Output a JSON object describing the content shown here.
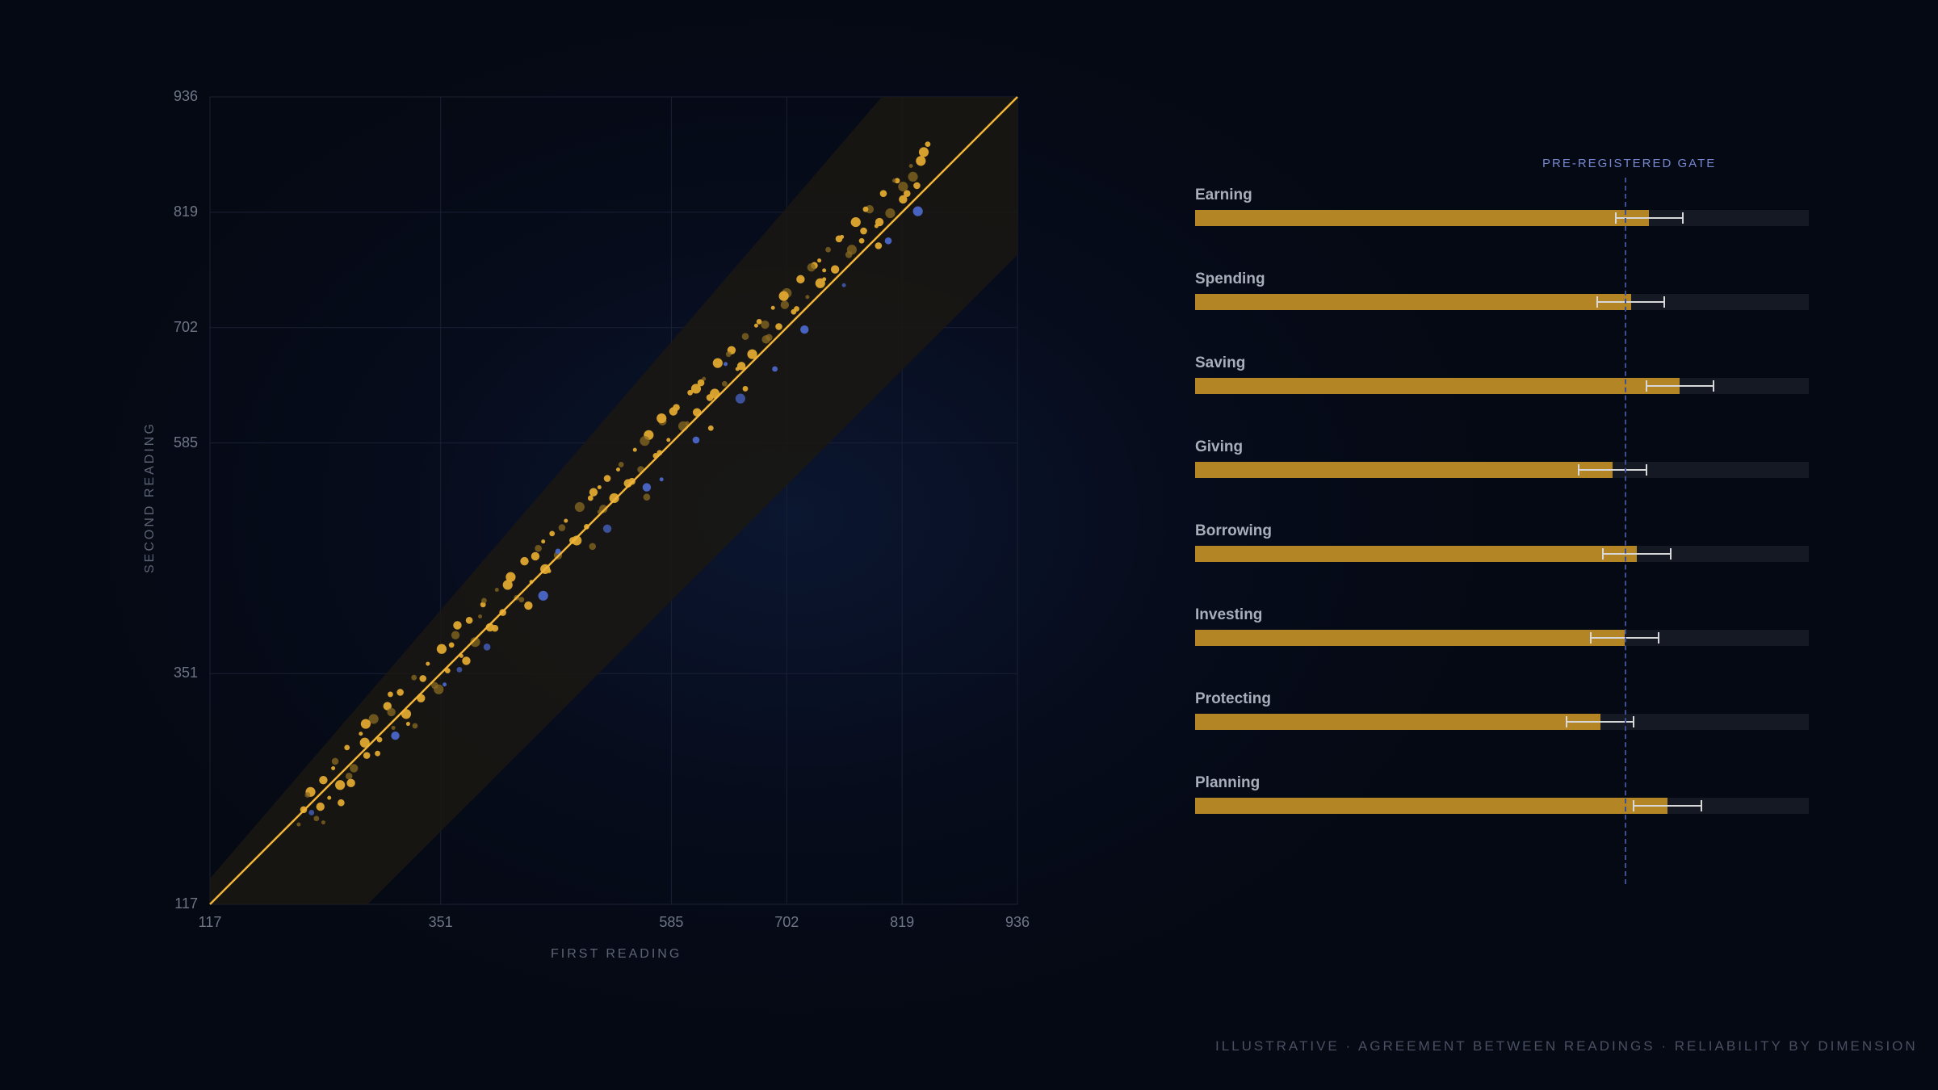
{
  "colors": {
    "gold": "#e0a830",
    "gold_dim": "#8a6a22",
    "blue": "#4a66c8",
    "bar_fill": "#b48525",
    "bar_track": "#141923",
    "gate": "#3d4f93"
  },
  "chart_data": [
    {
      "type": "scatter",
      "xlabel": "FIRST READING",
      "ylabel": "SECOND READING",
      "xlim": [
        117,
        936
      ],
      "ylim": [
        117,
        936
      ],
      "x_ticks": [
        "117",
        "351",
        "585",
        "702",
        "819",
        "936"
      ],
      "y_ticks": [
        "936",
        "819",
        "702",
        "585",
        "351",
        "117"
      ],
      "grid": true,
      "identity_line": true,
      "agreement_band": true,
      "series": [
        {
          "color": "gold",
          "points": [
            [
              207,
              198
            ],
            [
              212,
              213
            ],
            [
              219,
              231
            ],
            [
              225,
              204
            ],
            [
              232,
              243
            ],
            [
              238,
              225
            ],
            [
              244,
              262
            ],
            [
              249,
              238
            ],
            [
              256,
              276
            ],
            [
              263,
              255
            ],
            [
              270,
              290
            ],
            [
              276,
              268
            ],
            [
              283,
              305
            ],
            [
              289,
              284
            ],
            [
              297,
              318
            ],
            [
              303,
              296
            ],
            [
              310,
              332
            ],
            [
              316,
              310
            ],
            [
              324,
              347
            ],
            [
              331,
              326
            ],
            [
              338,
              361
            ],
            [
              345,
              339
            ],
            [
              352,
              376
            ],
            [
              358,
              354
            ],
            [
              366,
              390
            ],
            [
              372,
              369
            ],
            [
              380,
              405
            ],
            [
              386,
              383
            ],
            [
              394,
              421
            ],
            [
              401,
              398
            ],
            [
              408,
              436
            ],
            [
              414,
              413
            ],
            [
              422,
              449
            ],
            [
              428,
              428
            ],
            [
              436,
              465
            ],
            [
              443,
              444
            ],
            [
              450,
              478
            ],
            [
              457,
              457
            ],
            [
              464,
              493
            ],
            [
              470,
              471
            ],
            [
              478,
              506
            ],
            [
              485,
              486
            ],
            [
              492,
              520
            ],
            [
              499,
              500
            ],
            [
              506,
              535
            ],
            [
              512,
              515
            ],
            [
              520,
              549
            ],
            [
              527,
              529
            ],
            [
              534,
              563
            ],
            [
              541,
              544
            ],
            [
              548,
              578
            ],
            [
              554,
              558
            ],
            [
              562,
              593
            ],
            [
              569,
              572
            ],
            [
              576,
              607
            ],
            [
              582,
              588
            ],
            [
              590,
              621
            ],
            [
              597,
              602
            ],
            [
              604,
              636
            ],
            [
              611,
              616
            ],
            [
              618,
              650
            ],
            [
              624,
              631
            ],
            [
              632,
              666
            ],
            [
              639,
              645
            ],
            [
              646,
              679
            ],
            [
              652,
              660
            ],
            [
              660,
              693
            ],
            [
              667,
              675
            ],
            [
              674,
              708
            ],
            [
              681,
              690
            ],
            [
              688,
              722
            ],
            [
              694,
              703
            ],
            [
              702,
              737
            ],
            [
              709,
              718
            ],
            [
              716,
              751
            ],
            [
              723,
              733
            ],
            [
              730,
              765
            ],
            [
              736,
              747
            ],
            [
              744,
              781
            ],
            [
              751,
              761
            ],
            [
              758,
              794
            ],
            [
              765,
              776
            ],
            [
              772,
              809
            ],
            [
              778,
              790
            ],
            [
              786,
              822
            ],
            [
              793,
              805
            ],
            [
              800,
              838
            ],
            [
              807,
              818
            ],
            [
              814,
              851
            ],
            [
              820,
              832
            ],
            [
              828,
              866
            ],
            [
              834,
              846
            ],
            [
              841,
              880
            ],
            [
              216,
              228
            ],
            [
              229,
              216
            ],
            [
              242,
              255
            ],
            [
              258,
              247
            ],
            [
              274,
              281
            ],
            [
              287,
              270
            ],
            [
              301,
              312
            ],
            [
              318,
              300
            ],
            [
              333,
              346
            ],
            [
              349,
              335
            ],
            [
              362,
              380
            ],
            [
              377,
              364
            ],
            [
              391,
              409
            ],
            [
              406,
              397
            ],
            [
              419,
              441
            ],
            [
              433,
              426
            ],
            [
              447,
              470
            ],
            [
              461,
              455
            ],
            [
              474,
              499
            ],
            [
              489,
              486
            ],
            [
              503,
              529
            ],
            [
              516,
              518
            ],
            [
              531,
              558
            ],
            [
              545,
              546
            ],
            [
              558,
              587
            ],
            [
              573,
              575
            ],
            [
              587,
              617
            ],
            [
              601,
              605
            ],
            [
              615,
              646
            ],
            [
              629,
              635
            ],
            [
              643,
              675
            ],
            [
              656,
              663
            ],
            [
              671,
              704
            ],
            [
              684,
              692
            ],
            [
              699,
              734
            ],
            [
              712,
              721
            ],
            [
              727,
              763
            ],
            [
              740,
              751
            ],
            [
              755,
              792
            ],
            [
              768,
              781
            ],
            [
              782,
              822
            ],
            [
              796,
              809
            ],
            [
              811,
              851
            ],
            [
              824,
              838
            ],
            [
              838,
              871
            ],
            [
              395,
              425
            ],
            [
              440,
              420
            ],
            [
              512,
              540
            ],
            [
              560,
              530
            ],
            [
              610,
              640
            ],
            [
              660,
              640
            ],
            [
              700,
              725
            ],
            [
              740,
              760
            ],
            [
              780,
              800
            ],
            [
              820,
              845
            ],
            [
              300,
              330
            ],
            [
              260,
              240
            ],
            [
              232,
              200
            ],
            [
              250,
              220
            ],
            [
              275,
              300
            ],
            [
              325,
              298
            ],
            [
              368,
              400
            ],
            [
              455,
              485
            ],
            [
              505,
              480
            ],
            [
              575,
              610
            ],
            [
              625,
              600
            ],
            [
              680,
              705
            ],
            [
              735,
              770
            ],
            [
              795,
              785
            ],
            [
              830,
              855
            ],
            [
              845,
              888
            ]
          ]
        },
        {
          "color": "blue",
          "points": [
            [
              220,
              210
            ],
            [
              305,
              288
            ],
            [
              355,
              340
            ],
            [
              398,
              378
            ],
            [
              455,
              430
            ],
            [
              470,
              475
            ],
            [
              520,
              498
            ],
            [
              575,
              548
            ],
            [
              610,
              588
            ],
            [
              655,
              630
            ],
            [
              690,
              660
            ],
            [
              720,
              700
            ],
            [
              760,
              745
            ],
            [
              805,
              790
            ],
            [
              835,
              820
            ],
            [
              370,
              355
            ],
            [
              560,
              540
            ],
            [
              640,
              665
            ]
          ]
        }
      ]
    },
    {
      "type": "bar",
      "orientation": "horizontal",
      "categories": [
        "Earning",
        "Spending",
        "Saving",
        "Giving",
        "Borrowing",
        "Investing",
        "Protecting",
        "Planning"
      ],
      "values": [
        0.74,
        0.71,
        0.79,
        0.68,
        0.72,
        0.7,
        0.66,
        0.77
      ],
      "error": [
        0.055,
        0.055,
        0.055,
        0.055,
        0.055,
        0.055,
        0.055,
        0.055
      ],
      "xlim": [
        0,
        1
      ],
      "reference_line": {
        "label": "PRE-REGISTERED GATE",
        "value": 0.7
      }
    }
  ],
  "footer": "ILLUSTRATIVE · AGREEMENT BETWEEN READINGS · RELIABILITY BY DIMENSION"
}
